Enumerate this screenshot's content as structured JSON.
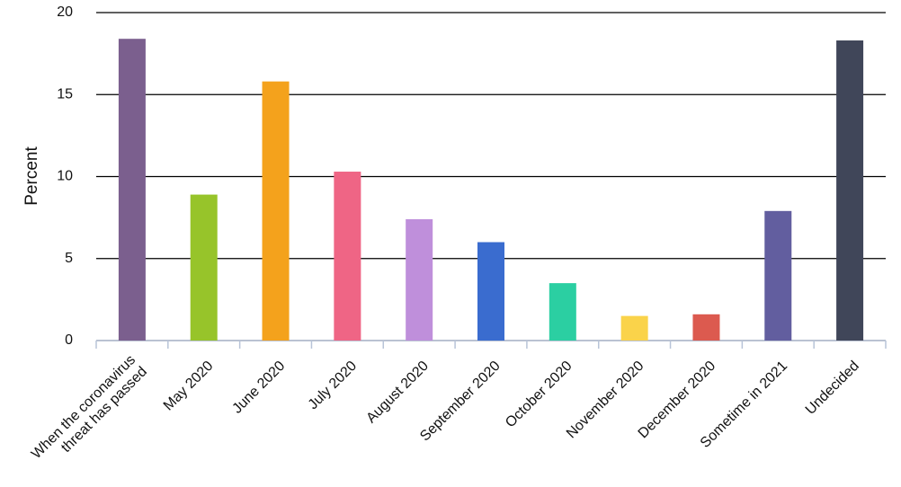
{
  "chart_data": {
    "type": "bar",
    "y_label": "Percent",
    "categories": [
      "When the coronavirus\nthreat has passed",
      "May 2020",
      "June 2020",
      "July 2020",
      "August 2020",
      "September 2020",
      "October 2020",
      "November 2020",
      "December 2020",
      "Sometime in 2021",
      "Undecided"
    ],
    "values": [
      18.4,
      8.9,
      15.8,
      10.3,
      7.4,
      6.0,
      3.5,
      1.5,
      1.6,
      7.9,
      18.3
    ],
    "colors": [
      "#7b5f8e",
      "#97c42a",
      "#f4a21c",
      "#ef6585",
      "#bf8fdb",
      "#3a6ccf",
      "#2bcfa2",
      "#fad34a",
      "#dc5a4f",
      "#625e9f",
      "#404659"
    ],
    "ylim": [
      0,
      20
    ],
    "yticks": [
      0,
      5,
      10,
      15,
      20
    ],
    "grid": true
  }
}
